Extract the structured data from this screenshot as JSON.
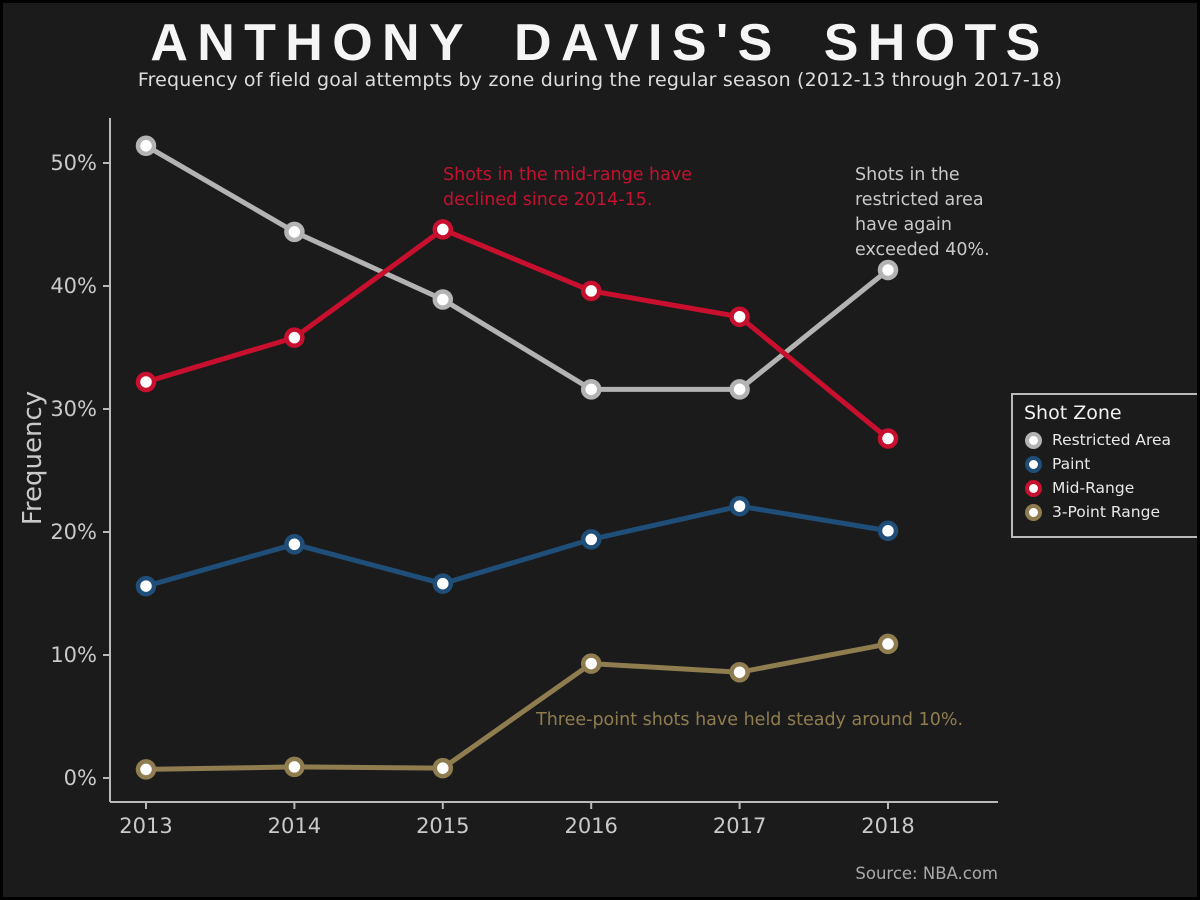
{
  "header": {
    "title": "ANTHONY DAVIS'S SHOTS",
    "subtitle": "Frequency of field goal attempts by zone during the regular season (2012-13 through 2017-18)"
  },
  "chart_data": {
    "type": "line",
    "x": [
      2013,
      2014,
      2015,
      2016,
      2017,
      2018
    ],
    "series": [
      {
        "name": "Restricted Area",
        "color": "#b3b3b3",
        "values": [
          51.4,
          44.4,
          38.9,
          31.6,
          31.6,
          41.3
        ]
      },
      {
        "name": "Paint",
        "color": "#1f4e79",
        "values": [
          15.6,
          19.0,
          15.8,
          19.4,
          22.1,
          20.1
        ]
      },
      {
        "name": "Mid-Range",
        "color": "#c8102e",
        "values": [
          32.2,
          35.8,
          44.6,
          39.6,
          37.5,
          27.6
        ]
      },
      {
        "name": "3-Point Range",
        "color": "#8f7d50",
        "values": [
          0.7,
          0.9,
          0.8,
          9.3,
          8.6,
          10.9
        ]
      }
    ],
    "ylabel": "Frequency",
    "xlabel": "",
    "ylim": [
      0,
      52
    ],
    "ytick_labels": [
      "0%",
      "10%",
      "20%",
      "30%",
      "40%",
      "50%"
    ],
    "ytick_values": [
      0,
      10,
      20,
      30,
      40,
      50
    ],
    "grid": false,
    "legend_title": "Shot Zone",
    "legend_position": "right",
    "axis_color": "#b9b9b9",
    "tick_label_color": "#c9c9c9",
    "background_color": "#1b1b1b",
    "marker_fill": "#ffffff"
  },
  "annotations": {
    "midrange": {
      "lines": "Shots in the mid-range have\ndeclined since 2014-15.",
      "color": "#c41230"
    },
    "restricted": {
      "lines": "Shots in the\nrestricted area\nhave again\nexceeded 40%.",
      "color": "#c9c9c9"
    },
    "threept": {
      "lines": "Three-point shots have held steady around 10%.",
      "color": "#8f7d50"
    }
  },
  "footer": {
    "source": "Source: NBA.com"
  }
}
